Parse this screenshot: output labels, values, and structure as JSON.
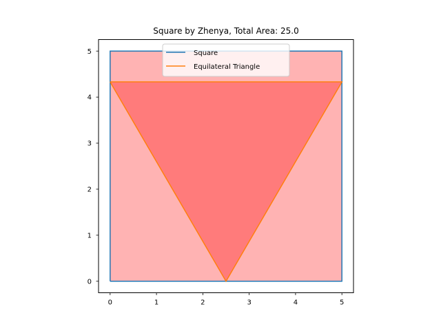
{
  "chart_data": {
    "type": "line",
    "title": "Square by Zhenya, Total Area: 25.0",
    "xlabel": "",
    "ylabel": "",
    "xlim": [
      -0.25,
      5.25
    ],
    "ylim": [
      -0.25,
      5.25
    ],
    "xticks": [
      0,
      1,
      2,
      3,
      4,
      5
    ],
    "yticks": [
      0,
      1,
      2,
      3,
      4,
      5
    ],
    "grid": false,
    "legend_position": "top-center",
    "series": [
      {
        "name": "Square",
        "color": "#1f77b4",
        "fill_color": "#ffb3b3",
        "closed": true,
        "x": [
          0,
          5,
          5,
          0,
          0
        ],
        "y": [
          0,
          0,
          5,
          5,
          0
        ]
      },
      {
        "name": "Equilateral Triangle",
        "color": "#ff7f0e",
        "fill_color": "#ff7b7b",
        "closed": true,
        "x": [
          0,
          5,
          2.5,
          0
        ],
        "y": [
          4.33,
          4.33,
          0,
          4.33
        ]
      }
    ]
  }
}
